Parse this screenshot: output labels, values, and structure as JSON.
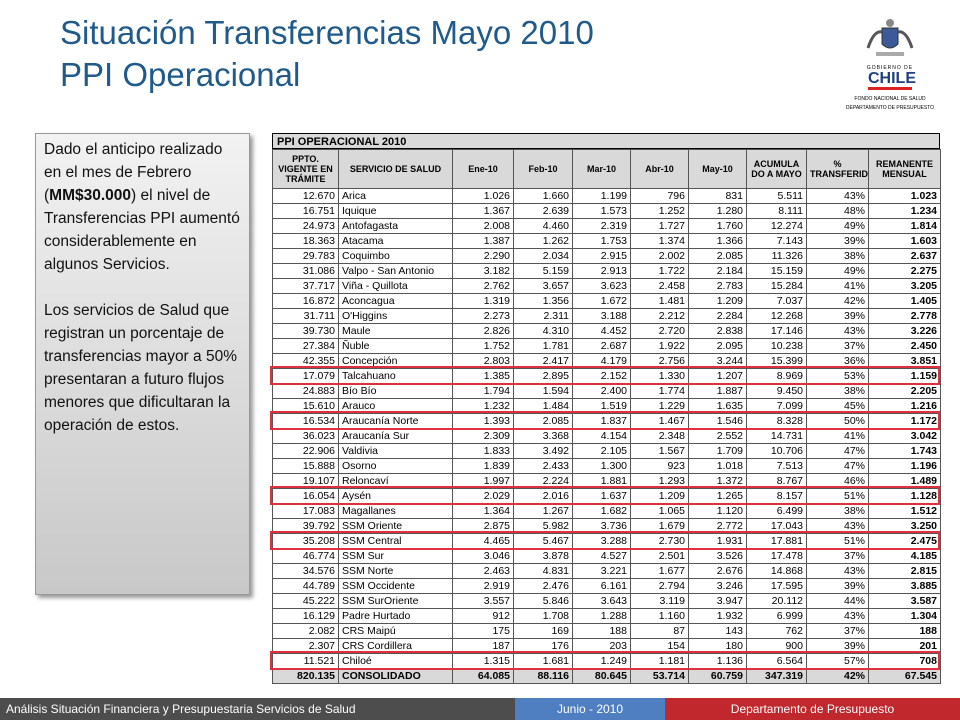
{
  "header": {
    "title_line1": "Situación Transferencias Mayo 2010",
    "title_line2": "PPI Operacional"
  },
  "logo": {
    "line1": "GOBIERNO DE",
    "line2": "CHILE",
    "line3": "FONDO NACIONAL DE SALUD",
    "line4": "DEPARTAMENTO DE PRESUPUESTO"
  },
  "textbox": {
    "paragraph1": {
      "before": "Dado el anticipo realizado en el mes de Febrero (",
      "bold": "MM$30.000",
      "after": ") el nivel de Transferencias PPI aumentó considerablemente en algunos Servicios."
    },
    "paragraph2": "Los servicios de Salud que registran un porcentaje de transferencias mayor a 50% presentaran a futuro flujos menores que dificultaran la operación de estos."
  },
  "table": {
    "title": "PPI OPERACIONAL 2010",
    "headers": [
      "PPTO. VIGENTE EN TRÁMITE",
      "SERVICIO DE SALUD",
      "Ene-10",
      "Feb-10",
      "Mar-10",
      "Abr-10",
      "May-10",
      "ACUMULA DO A MAYO",
      "% TRANSFERIDO",
      "REMANENTE MENSUAL"
    ],
    "rows": [
      [
        "12.670",
        "Arica",
        "1.026",
        "1.660",
        "1.199",
        "796",
        "831",
        "5.511",
        "43%",
        "1.023"
      ],
      [
        "16.751",
        "Iquique",
        "1.367",
        "2.639",
        "1.573",
        "1.252",
        "1.280",
        "8.111",
        "48%",
        "1.234"
      ],
      [
        "24.973",
        "Antofagasta",
        "2.008",
        "4.460",
        "2.319",
        "1.727",
        "1.760",
        "12.274",
        "49%",
        "1.814"
      ],
      [
        "18.363",
        "Atacama",
        "1.387",
        "1.262",
        "1.753",
        "1.374",
        "1.366",
        "7.143",
        "39%",
        "1.603"
      ],
      [
        "29.783",
        "Coquimbo",
        "2.290",
        "2.034",
        "2.915",
        "2.002",
        "2.085",
        "11.326",
        "38%",
        "2.637"
      ],
      [
        "31.086",
        "Valpo - San Antonio",
        "3.182",
        "5.159",
        "2.913",
        "1.722",
        "2.184",
        "15.159",
        "49%",
        "2.275"
      ],
      [
        "37.717",
        "Viña - Quillota",
        "2.762",
        "3.657",
        "3.623",
        "2.458",
        "2.783",
        "15.284",
        "41%",
        "3.205"
      ],
      [
        "16.872",
        "Aconcagua",
        "1.319",
        "1.356",
        "1.672",
        "1.481",
        "1.209",
        "7.037",
        "42%",
        "1.405"
      ],
      [
        "31.711",
        "O'Higgins",
        "2.273",
        "2.311",
        "3.188",
        "2.212",
        "2.284",
        "12.268",
        "39%",
        "2.778"
      ],
      [
        "39.730",
        "Maule",
        "2.826",
        "4.310",
        "4.452",
        "2.720",
        "2.838",
        "17.146",
        "43%",
        "3.226"
      ],
      [
        "27.384",
        "Ñuble",
        "1.752",
        "1.781",
        "2.687",
        "1.922",
        "2.095",
        "10.238",
        "37%",
        "2.450"
      ],
      [
        "42.355",
        "Concepción",
        "2.803",
        "2.417",
        "4.179",
        "2.756",
        "3.244",
        "15.399",
        "36%",
        "3.851"
      ],
      [
        "17.079",
        "Talcahuano",
        "1.385",
        "2.895",
        "2.152",
        "1.330",
        "1.207",
        "8.969",
        "53%",
        "1.159"
      ],
      [
        "24.883",
        "Bío Bío",
        "1.794",
        "1.594",
        "2.400",
        "1.774",
        "1.887",
        "9.450",
        "38%",
        "2.205"
      ],
      [
        "15.610",
        "Arauco",
        "1.232",
        "1.484",
        "1.519",
        "1.229",
        "1.635",
        "7.099",
        "45%",
        "1.216"
      ],
      [
        "16.534",
        "Araucanía Norte",
        "1.393",
        "2.085",
        "1.837",
        "1.467",
        "1.546",
        "8.328",
        "50%",
        "1.172"
      ],
      [
        "36.023",
        "Araucanía Sur",
        "2.309",
        "3.368",
        "4.154",
        "2.348",
        "2.552",
        "14.731",
        "41%",
        "3.042"
      ],
      [
        "22.906",
        "Valdivia",
        "1.833",
        "3.492",
        "2.105",
        "1.567",
        "1.709",
        "10.706",
        "47%",
        "1.743"
      ],
      [
        "15.888",
        "Osorno",
        "1.839",
        "2.433",
        "1.300",
        "923",
        "1.018",
        "7.513",
        "47%",
        "1.196"
      ],
      [
        "19.107",
        "Reloncaví",
        "1.997",
        "2.224",
        "1.881",
        "1.293",
        "1.372",
        "8.767",
        "46%",
        "1.489"
      ],
      [
        "16.054",
        "Aysén",
        "2.029",
        "2.016",
        "1.637",
        "1.209",
        "1.265",
        "8.157",
        "51%",
        "1.128"
      ],
      [
        "17.083",
        "Magallanes",
        "1.364",
        "1.267",
        "1.682",
        "1.065",
        "1.120",
        "6.499",
        "38%",
        "1.512"
      ],
      [
        "39.792",
        "SSM Oriente",
        "2.875",
        "5.982",
        "3.736",
        "1.679",
        "2.772",
        "17.043",
        "43%",
        "3.250"
      ],
      [
        "35.208",
        "SSM Central",
        "4.465",
        "5.467",
        "3.288",
        "2.730",
        "1.931",
        "17.881",
        "51%",
        "2.475"
      ],
      [
        "46.774",
        "SSM Sur",
        "3.046",
        "3.878",
        "4.527",
        "2.501",
        "3.526",
        "17.478",
        "37%",
        "4.185"
      ],
      [
        "34.576",
        "SSM Norte",
        "2.463",
        "4.831",
        "3.221",
        "1.677",
        "2.676",
        "14.868",
        "43%",
        "2.815"
      ],
      [
        "44.789",
        "SSM Occidente",
        "2.919",
        "2.476",
        "6.161",
        "2.794",
        "3.246",
        "17.595",
        "39%",
        "3.885"
      ],
      [
        "45.222",
        "SSM SurOriente",
        "3.557",
        "5.846",
        "3.643",
        "3.119",
        "3.947",
        "20.112",
        "44%",
        "3.587"
      ],
      [
        "16.129",
        "Padre Hurtado",
        "912",
        "1.708",
        "1.288",
        "1.160",
        "1.932",
        "6.999",
        "43%",
        "1.304"
      ],
      [
        "2.082",
        "CRS Maipú",
        "175",
        "169",
        "188",
        "87",
        "143",
        "762",
        "37%",
        "188"
      ],
      [
        "2.307",
        "CRS Cordillera",
        "187",
        "176",
        "203",
        "154",
        "180",
        "900",
        "39%",
        "201"
      ],
      [
        "11.521",
        "Chiloé",
        "1.315",
        "1.681",
        "1.249",
        "1.181",
        "1.136",
        "6.564",
        "57%",
        "708"
      ]
    ],
    "total": [
      "820.135",
      "CONSOLIDADO",
      "64.085",
      "88.116",
      "80.645",
      "53.714",
      "60.759",
      "347.319",
      "42%",
      "67.545"
    ]
  },
  "footer": {
    "left": "Análisis Situación Financiera y Presupuestaria Servicios de Salud",
    "center": "Junio - 2010",
    "right": "Departamento de Presupuesto"
  }
}
